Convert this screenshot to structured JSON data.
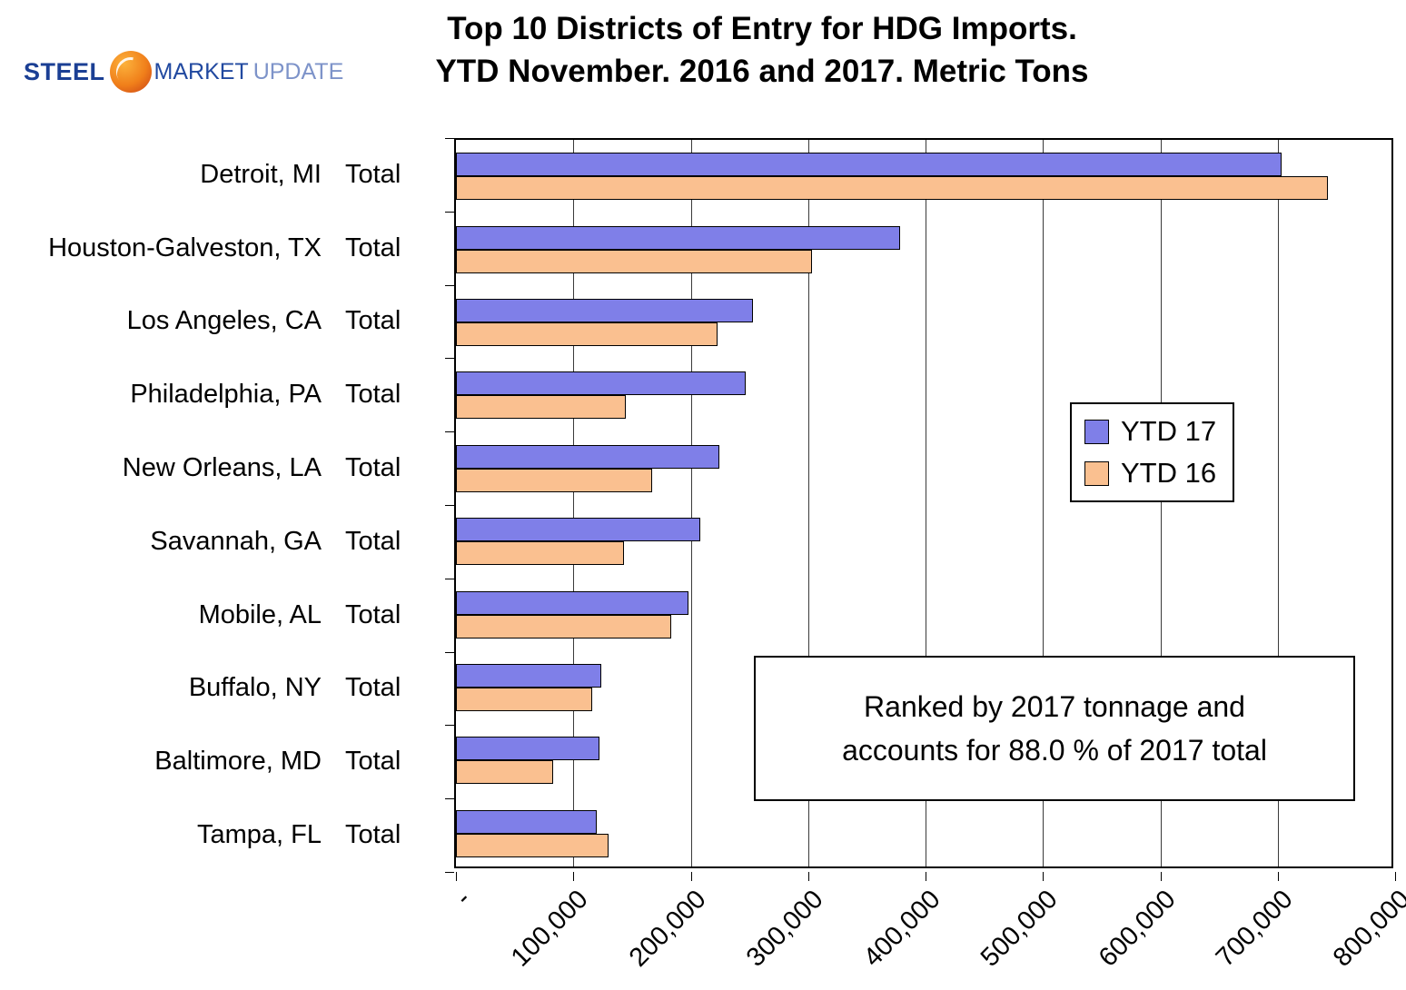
{
  "logo": {
    "steel": "STEEL",
    "market": "MARKET",
    "update": "UPDATE"
  },
  "title": {
    "line1": "Top 10 Districts of Entry for HDG Imports.",
    "line2": "YTD November. 2016 and 2017. Metric Tons"
  },
  "chart_data": {
    "type": "bar",
    "orientation": "horizontal",
    "categories": [
      "Detroit, MI",
      "Houston-Galveston, TX",
      "Los Angeles, CA",
      "Philadelphia, PA",
      "New Orleans, LA",
      "Savannah, GA",
      "Mobile, AL",
      "Buffalo, NY",
      "Baltimore, MD",
      "Tampa, FL"
    ],
    "category_suffix": "Total",
    "series": [
      {
        "name": "YTD 17",
        "color": "#7F7FE8",
        "values": [
          703000,
          378000,
          253000,
          247000,
          224000,
          208000,
          198000,
          124000,
          122000,
          120000
        ]
      },
      {
        "name": "YTD 16",
        "color": "#FAC090",
        "values": [
          743000,
          303000,
          223000,
          145000,
          167000,
          143000,
          183000,
          116000,
          83000,
          130000
        ]
      }
    ],
    "xlim": [
      0,
      800000
    ],
    "x_tick_values": [
      0,
      100000,
      200000,
      300000,
      400000,
      500000,
      600000,
      700000,
      800000
    ],
    "x_tick_labels": [
      "-",
      "100,000",
      "200,000",
      "300,000",
      "400,000",
      "500,000",
      "600,000",
      "700,000",
      "800,000"
    ],
    "grid": true,
    "legend_position": "middle-right"
  },
  "annotation": {
    "line1": "Ranked by 2017 tonnage and",
    "line2": "accounts for 88.0 % of 2017 total"
  }
}
